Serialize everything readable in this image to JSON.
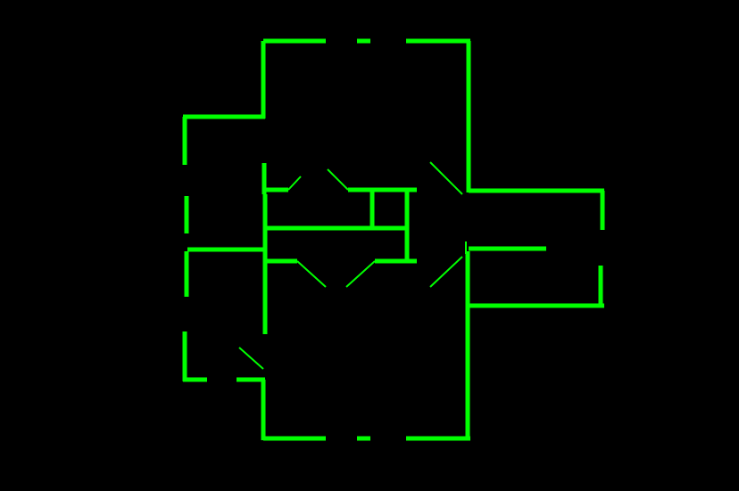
{
  "diagram": {
    "kind": "floor-plan",
    "colors": {
      "background": "#000000",
      "wall": "#00ff00"
    },
    "wall_count": 52,
    "door_swing_count": 9
  }
}
